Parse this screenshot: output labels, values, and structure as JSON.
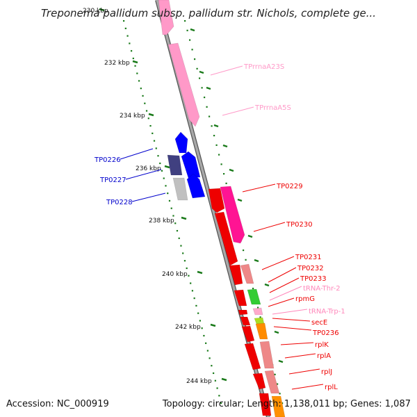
{
  "header": {
    "title": "Treponema pallidum subsp. pallidum str. Nichols, complete ge..."
  },
  "footer": {
    "accession": "Accession: NC_000919",
    "summary": "Topology: circular; Length: 1,138,011 bp; Genes: 1,087"
  },
  "colors": {
    "backbone": "#8c8c8c",
    "tick": "#1a7a1a",
    "rrna": "#ff99c8",
    "cds_red": "#ff0000",
    "cds_blue": "#0000ff",
    "trna": "#ff99cc",
    "label_red": "#ff0000",
    "label_blue": "#0000cc",
    "label_pink": "#ff80b0"
  },
  "ticks": [
    {
      "label": "230 kbp"
    },
    {
      "label": "232 kbp"
    },
    {
      "label": "234 kbp"
    },
    {
      "label": "236 kbp"
    },
    {
      "label": "238 kbp"
    },
    {
      "label": "240 kbp"
    },
    {
      "label": "242 kbp"
    },
    {
      "label": "244 kbp"
    }
  ],
  "genes": [
    {
      "name": "TPrrnaA23S",
      "color": "#ff99c8"
    },
    {
      "name": "TPrrnaA5S",
      "color": "#ff99c8"
    },
    {
      "name": "TP0226",
      "color": "#0000cc"
    },
    {
      "name": "TP0227",
      "color": "#0000cc"
    },
    {
      "name": "TP0228",
      "color": "#0000cc"
    },
    {
      "name": "TP0229",
      "color": "#ee0000"
    },
    {
      "name": "TP0230",
      "color": "#ee0000"
    },
    {
      "name": "TP0231",
      "color": "#ee0000"
    },
    {
      "name": "TP0232",
      "color": "#ee0000"
    },
    {
      "name": "TP0233",
      "color": "#ee0000"
    },
    {
      "name": "tRNA-Thr-2",
      "color": "#ff88bb"
    },
    {
      "name": "rpmG",
      "color": "#ee0000"
    },
    {
      "name": "tRNA-Trp-1",
      "color": "#ff88bb"
    },
    {
      "name": "secE",
      "color": "#ee0000"
    },
    {
      "name": "TP0236",
      "color": "#ee0000"
    },
    {
      "name": "rplK",
      "color": "#ee0000"
    },
    {
      "name": "rplA",
      "color": "#ee0000"
    },
    {
      "name": "rplJ",
      "color": "#ee0000"
    },
    {
      "name": "rplL",
      "color": "#ee0000"
    }
  ]
}
